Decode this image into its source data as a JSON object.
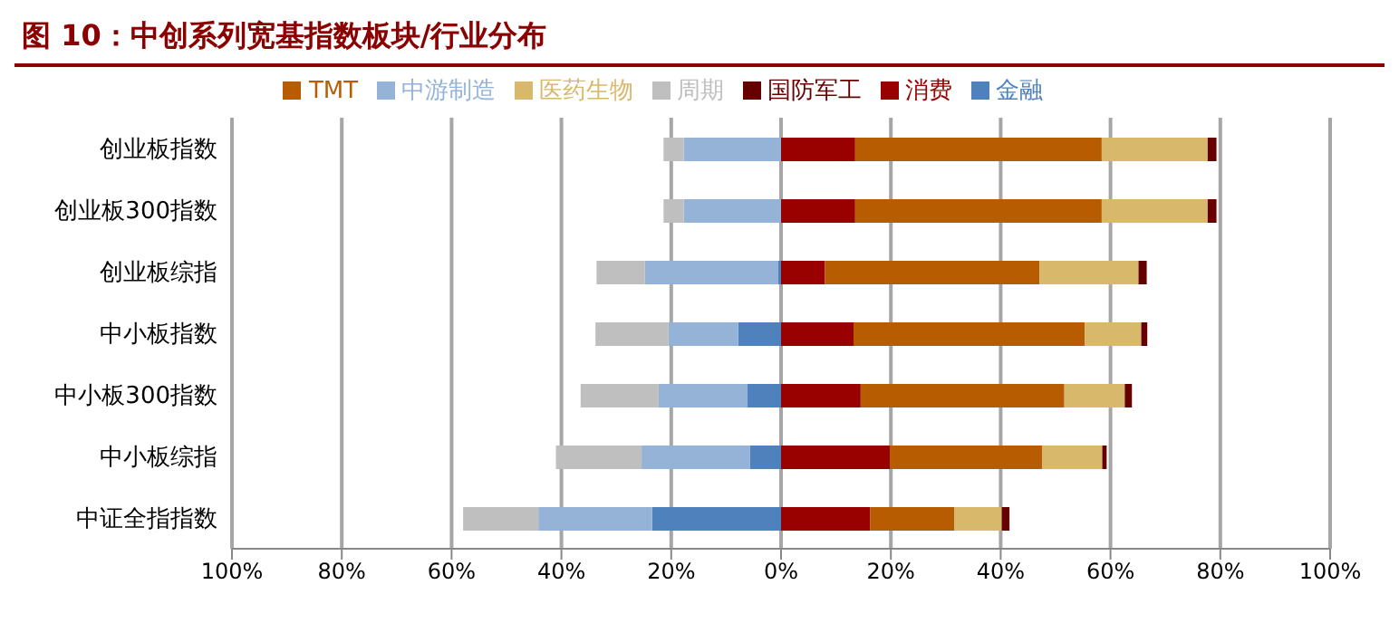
{
  "chart_data": {
    "type": "bar",
    "orientation": "horizontal",
    "stacked": true,
    "title": "图 10：中创系列宽基指数板块/行业分布",
    "categories": [
      "创业板指数",
      "创业板300指数",
      "创业板综指",
      "中小板指数",
      "中小板300指数",
      "中小板综指",
      "中证全指指数"
    ],
    "series": [
      {
        "name": "金融",
        "color": "#4f81bd",
        "values": [
          0,
          0,
          -0.5,
          -7.8,
          -6.1,
          -5.7,
          -23.5
        ]
      },
      {
        "name": "中游制造",
        "color": "#95b3d7",
        "values": [
          -17.7,
          -17.7,
          -24.3,
          -12.7,
          -16.2,
          -19.7,
          -20.7
        ]
      },
      {
        "name": "周期",
        "color": "#bfbfbf",
        "values": [
          -3.7,
          -3.7,
          -8.8,
          -13.3,
          -14.2,
          -15.6,
          -13.7
        ]
      },
      {
        "name": "消费",
        "color": "#990000",
        "values": [
          13.5,
          13.5,
          8.0,
          13.2,
          14.5,
          19.8,
          16.2
        ]
      },
      {
        "name": "TMT",
        "color": "#b75c00",
        "values": [
          44.9,
          44.9,
          39.1,
          42.1,
          37.1,
          27.8,
          15.4
        ]
      },
      {
        "name": "医药生物",
        "color": "#d8b96c",
        "values": [
          19.3,
          19.3,
          18.0,
          10.3,
          11.0,
          10.9,
          8.6
        ]
      },
      {
        "name": "国防军工",
        "color": "#660000",
        "values": [
          1.6,
          1.6,
          1.5,
          1.1,
          1.3,
          0.8,
          1.4
        ]
      }
    ],
    "xlim": [
      -100,
      100
    ],
    "xticks": [
      {
        "value": -100,
        "label": "100%"
      },
      {
        "value": -80,
        "label": "80%"
      },
      {
        "value": -60,
        "label": "60%"
      },
      {
        "value": -40,
        "label": "40%"
      },
      {
        "value": -20,
        "label": "20%"
      },
      {
        "value": 0,
        "label": "0%"
      },
      {
        "value": 20,
        "label": "20%"
      },
      {
        "value": 40,
        "label": "40%"
      },
      {
        "value": 60,
        "label": "60%"
      },
      {
        "value": 80,
        "label": "80%"
      },
      {
        "value": 100,
        "label": "100%"
      }
    ],
    "grid": "x",
    "legend": "top"
  }
}
